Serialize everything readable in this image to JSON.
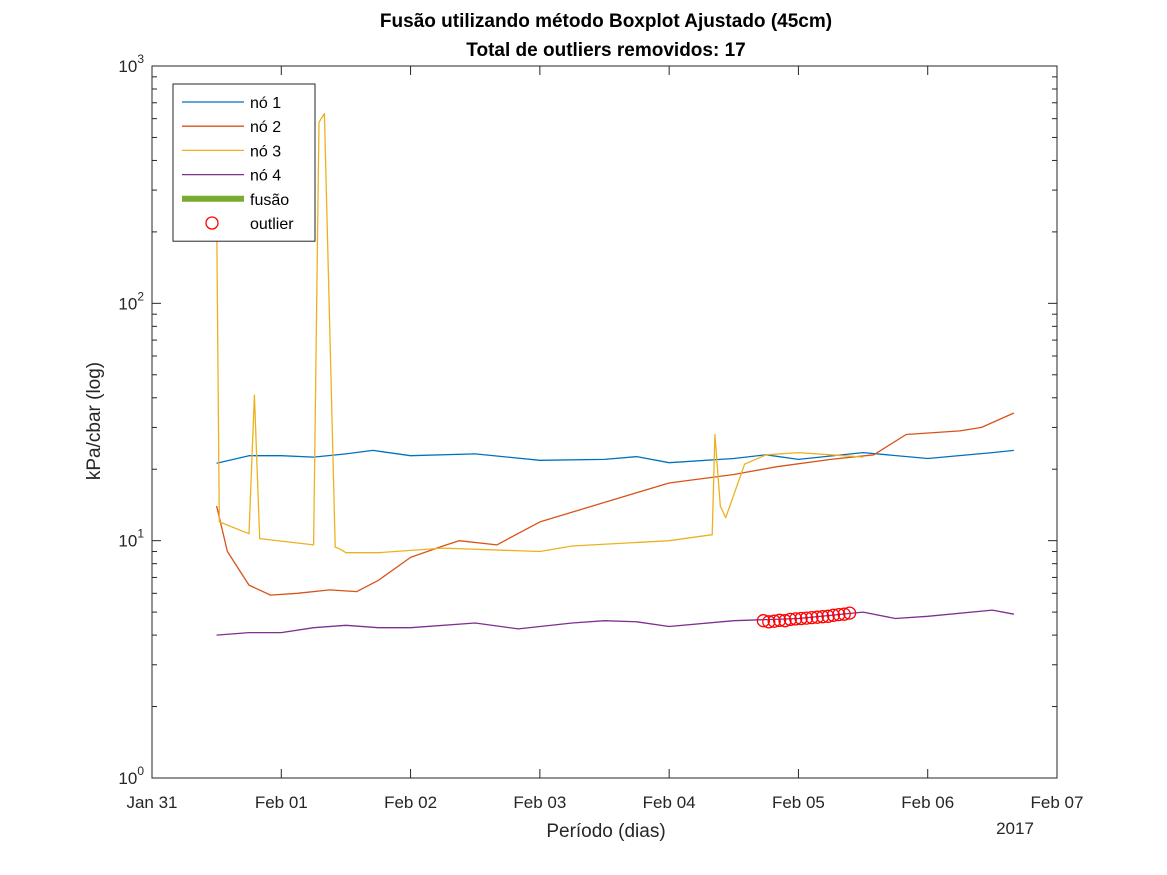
{
  "chart_data": {
    "type": "line",
    "title": "Fusão utilizando método Boxplot Ajustado (45cm)",
    "subtitle": "Total de outliers removidos: 17",
    "xlabel": "Período (dias)",
    "ylabel": "kPa/cbar (log)",
    "y_scale": "log",
    "ylim": [
      1,
      1000
    ],
    "xlim": [
      "2017-01-31",
      "2017-02-07"
    ],
    "x_ticks": [
      "Jan 31",
      "Feb 01",
      "Feb 02",
      "Feb 03",
      "Feb 04",
      "Feb 05",
      "Feb 06",
      "Feb 07"
    ],
    "x_year_label": "2017",
    "y_ticks": [
      1,
      10,
      100,
      1000
    ],
    "y_tick_labels": [
      {
        "base": "10",
        "exp": "0"
      },
      {
        "base": "10",
        "exp": "1"
      },
      {
        "base": "10",
        "exp": "2"
      },
      {
        "base": "10",
        "exp": "3"
      }
    ],
    "grid": false,
    "legend_position": "top-left",
    "legend": [
      {
        "label": "nó 1",
        "color": "#0072BD",
        "marker": "line"
      },
      {
        "label": "nó 2",
        "color": "#D95319",
        "marker": "line"
      },
      {
        "label": "nó 3",
        "color": "#EDB120",
        "marker": "line"
      },
      {
        "label": "nó 4",
        "color": "#7E2F8E",
        "marker": "line"
      },
      {
        "label": "fusão",
        "color": "#77AC30",
        "marker": "thick-line"
      },
      {
        "label": "outlier",
        "color": "#FF0000",
        "marker": "circle"
      }
    ],
    "series": [
      {
        "name": "nó 1",
        "color": "#0072BD",
        "x": [
          "2017-01-31 12:00",
          "2017-01-31 18:00",
          "2017-02-01 00:00",
          "2017-02-01 06:00",
          "2017-02-01 12:00",
          "2017-02-01 17:00",
          "2017-02-02 00:00",
          "2017-02-02 12:00",
          "2017-02-03 00:00",
          "2017-02-03 12:00",
          "2017-02-03 18:00",
          "2017-02-04 00:00",
          "2017-02-04 12:00",
          "2017-02-04 18:00",
          "2017-02-05 00:00",
          "2017-02-05 12:00",
          "2017-02-06 00:00",
          "2017-02-06 12:00",
          "2017-02-06 16:00"
        ],
        "values": [
          21.2,
          22.8,
          22.8,
          22.5,
          23.2,
          24.0,
          22.8,
          23.2,
          21.8,
          22.0,
          22.6,
          21.3,
          22.2,
          23.0,
          22.0,
          23.5,
          22.2,
          23.5,
          24.0
        ]
      },
      {
        "name": "nó 2",
        "color": "#D95319",
        "x": [
          "2017-01-31 12:00",
          "2017-01-31 14:00",
          "2017-01-31 18:00",
          "2017-01-31 22:00",
          "2017-02-01 03:00",
          "2017-02-01 09:00",
          "2017-02-01 14:00",
          "2017-02-01 18:00",
          "2017-02-02 00:00",
          "2017-02-02 06:00",
          "2017-02-02 09:00",
          "2017-02-02 16:00",
          "2017-02-03 00:00",
          "2017-02-03 12:00",
          "2017-02-04 00:00",
          "2017-02-04 12:00",
          "2017-02-04 20:00",
          "2017-02-05 06:00",
          "2017-02-05 14:00",
          "2017-02-05 20:00",
          "2017-02-06 06:00",
          "2017-02-06 10:00",
          "2017-02-06 16:00"
        ],
        "values": [
          14.0,
          9.0,
          6.5,
          5.9,
          6.0,
          6.2,
          6.1,
          6.8,
          8.5,
          9.5,
          10.0,
          9.6,
          12.0,
          14.5,
          17.5,
          19.0,
          20.5,
          22.0,
          23.0,
          28.0,
          29.0,
          30.0,
          34.5
        ]
      },
      {
        "name": "nó 3",
        "color": "#EDB120",
        "x": [
          "2017-01-31 12:00",
          "2017-01-31 12:30",
          "2017-01-31 18:00",
          "2017-01-31 19:00",
          "2017-01-31 20:00",
          "2017-02-01 06:00",
          "2017-02-01 07:00",
          "2017-02-01 08:00",
          "2017-02-01 10:00",
          "2017-02-01 11:00",
          "2017-02-01 12:00",
          "2017-02-01 18:00",
          "2017-02-02 06:00",
          "2017-02-03 00:00",
          "2017-02-03 06:00",
          "2017-02-04 00:00",
          "2017-02-04 08:00",
          "2017-02-04 08:30",
          "2017-02-04 09:30",
          "2017-02-04 10:30",
          "2017-02-04 14:00",
          "2017-02-04 18:00",
          "2017-02-05 00:00",
          "2017-02-05 06:00",
          "2017-02-05 12:00"
        ],
        "values": [
          250,
          12.0,
          10.7,
          41.0,
          10.2,
          9.6,
          580,
          630,
          9.4,
          9.2,
          8.9,
          8.9,
          9.3,
          9.0,
          9.5,
          10.0,
          10.6,
          28.0,
          14.0,
          12.5,
          21.0,
          23.0,
          23.5,
          23.0,
          22.5
        ]
      },
      {
        "name": "nó 4",
        "color": "#7E2F8E",
        "x": [
          "2017-01-31 12:00",
          "2017-01-31 18:00",
          "2017-02-01 00:00",
          "2017-02-01 06:00",
          "2017-02-01 12:00",
          "2017-02-01 18:00",
          "2017-02-02 00:00",
          "2017-02-02 12:00",
          "2017-02-02 20:00",
          "2017-02-03 06:00",
          "2017-02-03 12:00",
          "2017-02-03 18:00",
          "2017-02-04 00:00",
          "2017-02-04 12:00",
          "2017-02-04 18:00",
          "2017-02-05 00:00",
          "2017-02-05 12:00",
          "2017-02-05 18:00",
          "2017-02-06 00:00",
          "2017-02-06 12:00",
          "2017-02-06 16:00"
        ],
        "values": [
          4.0,
          4.1,
          4.1,
          4.3,
          4.4,
          4.3,
          4.3,
          4.5,
          4.25,
          4.5,
          4.6,
          4.55,
          4.35,
          4.6,
          4.65,
          4.7,
          5.0,
          4.7,
          4.8,
          5.1,
          4.9
        ]
      },
      {
        "name": "outlier",
        "color": "#FF0000",
        "marker": "circle",
        "x": [
          "2017-02-04 17:30",
          "2017-02-04 18:30",
          "2017-02-04 19:30",
          "2017-02-04 20:30",
          "2017-02-04 21:30",
          "2017-02-04 22:30",
          "2017-02-04 23:30",
          "2017-02-05 00:30",
          "2017-02-05 01:30",
          "2017-02-05 02:30",
          "2017-02-05 03:30",
          "2017-02-05 04:30",
          "2017-02-05 05:30",
          "2017-02-05 06:30",
          "2017-02-05 07:30",
          "2017-02-05 08:30",
          "2017-02-05 09:30"
        ],
        "values": [
          4.6,
          4.55,
          4.58,
          4.62,
          4.6,
          4.66,
          4.68,
          4.7,
          4.72,
          4.74,
          4.76,
          4.78,
          4.8,
          4.85,
          4.88,
          4.9,
          4.95
        ]
      }
    ]
  }
}
